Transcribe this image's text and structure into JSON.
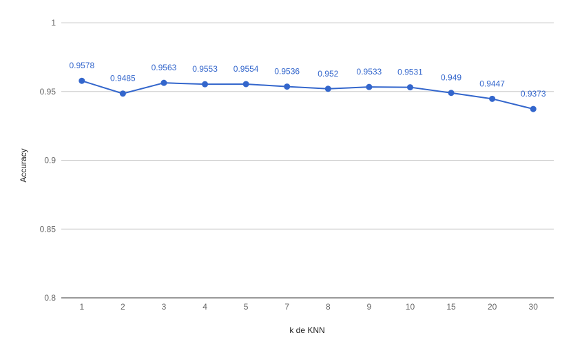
{
  "chart_data": {
    "type": "line",
    "x": [
      "1",
      "2",
      "3",
      "4",
      "5",
      "7",
      "8",
      "9",
      "10",
      "15",
      "20",
      "30"
    ],
    "series": [
      {
        "values": [
          0.9578,
          0.9485,
          0.9563,
          0.9553,
          0.9554,
          0.9536,
          0.952,
          0.9533,
          0.9531,
          0.949,
          0.9447,
          0.9373
        ],
        "labels": [
          "0.9578",
          "0.9485",
          "0.9563",
          "0.9553",
          "0.9554",
          "0.9536",
          "0.952",
          "0.9533",
          "0.9531",
          "0.949",
          "0.9447",
          "0.9373"
        ]
      }
    ],
    "xlabel": "k de KNN",
    "ylabel": "Accuracy",
    "ylim": [
      0.8,
      1
    ],
    "yticks": [
      "0.8",
      "0.85",
      "0.9",
      "0.95",
      "1"
    ],
    "grid": true,
    "colors": {
      "series": "#3366cc",
      "grid": "#cccccc",
      "baseline": "#333333"
    }
  }
}
